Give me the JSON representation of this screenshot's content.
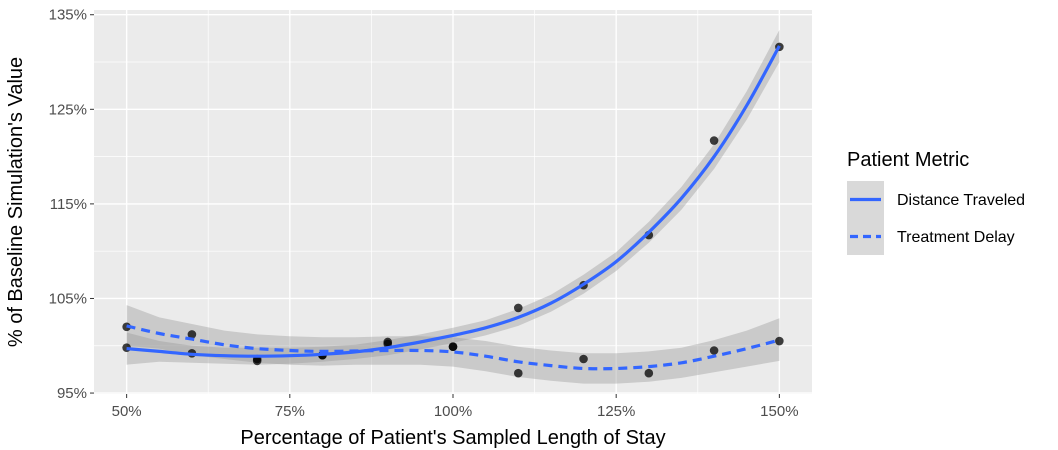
{
  "chart_data": {
    "type": "scatter",
    "title": "",
    "xlabel": "Percentage of Patient's Sampled Length of Stay",
    "ylabel": "% of Baseline Simulation's Value",
    "xlim": [
      45,
      155
    ],
    "ylim": [
      94.9,
      135.5
    ],
    "x_ticks": [
      50,
      75,
      100,
      125,
      150
    ],
    "x_tick_labels": [
      "50%",
      "75%",
      "100%",
      "125%",
      "150%"
    ],
    "y_ticks": [
      95,
      105,
      115,
      125,
      135
    ],
    "y_tick_labels": [
      "95%",
      "105%",
      "115%",
      "125%",
      "135%"
    ],
    "grid": true,
    "legend": {
      "title": "Patient Metric",
      "position": "right"
    },
    "series": [
      {
        "name": "Distance Traveled",
        "line_style": "solid",
        "color": "#3366ff",
        "points": [
          {
            "x": 50,
            "y": 99.8
          },
          {
            "x": 60,
            "y": 99.2
          },
          {
            "x": 70,
            "y": 98.6
          },
          {
            "x": 80,
            "y": 99.0
          },
          {
            "x": 90,
            "y": 100.2
          },
          {
            "x": 100,
            "y": 99.9
          },
          {
            "x": 110,
            "y": 104.0
          },
          {
            "x": 120,
            "y": 106.4
          },
          {
            "x": 130,
            "y": 111.7
          },
          {
            "x": 140,
            "y": 121.7
          },
          {
            "x": 150,
            "y": 131.6
          }
        ],
        "smooth": [
          {
            "x": 50,
            "y": 99.7
          },
          {
            "x": 55,
            "y": 99.4
          },
          {
            "x": 60,
            "y": 99.1
          },
          {
            "x": 65,
            "y": 98.95
          },
          {
            "x": 70,
            "y": 98.9
          },
          {
            "x": 75,
            "y": 98.95
          },
          {
            "x": 80,
            "y": 99.1
          },
          {
            "x": 85,
            "y": 99.35
          },
          {
            "x": 90,
            "y": 99.8
          },
          {
            "x": 95,
            "y": 100.4
          },
          {
            "x": 100,
            "y": 101.1
          },
          {
            "x": 105,
            "y": 101.9
          },
          {
            "x": 110,
            "y": 103.0
          },
          {
            "x": 115,
            "y": 104.5
          },
          {
            "x": 120,
            "y": 106.5
          },
          {
            "x": 125,
            "y": 108.9
          },
          {
            "x": 130,
            "y": 112.0
          },
          {
            "x": 135,
            "y": 115.6
          },
          {
            "x": 140,
            "y": 120.0
          },
          {
            "x": 145,
            "y": 125.4
          },
          {
            "x": 150,
            "y": 131.7
          }
        ],
        "band": [
          {
            "x": 50,
            "lo": 98.0,
            "hi": 101.4
          },
          {
            "x": 55,
            "lo": 98.3,
            "hi": 100.5
          },
          {
            "x": 60,
            "lo": 98.2,
            "hi": 100.0
          },
          {
            "x": 65,
            "lo": 98.1,
            "hi": 99.8
          },
          {
            "x": 70,
            "lo": 98.0,
            "hi": 99.8
          },
          {
            "x": 75,
            "lo": 98.1,
            "hi": 99.8
          },
          {
            "x": 80,
            "lo": 98.3,
            "hi": 99.9
          },
          {
            "x": 85,
            "lo": 98.6,
            "hi": 100.1
          },
          {
            "x": 90,
            "lo": 99.0,
            "hi": 100.6
          },
          {
            "x": 95,
            "lo": 99.6,
            "hi": 101.2
          },
          {
            "x": 100,
            "lo": 100.3,
            "hi": 101.9
          },
          {
            "x": 105,
            "lo": 101.1,
            "hi": 102.7
          },
          {
            "x": 110,
            "lo": 102.1,
            "hi": 103.9
          },
          {
            "x": 115,
            "lo": 103.6,
            "hi": 105.4
          },
          {
            "x": 120,
            "lo": 105.5,
            "hi": 107.5
          },
          {
            "x": 125,
            "lo": 107.9,
            "hi": 109.9
          },
          {
            "x": 130,
            "lo": 110.9,
            "hi": 113.1
          },
          {
            "x": 135,
            "lo": 114.4,
            "hi": 116.8
          },
          {
            "x": 140,
            "lo": 118.7,
            "hi": 121.3
          },
          {
            "x": 145,
            "lo": 123.9,
            "hi": 126.9
          },
          {
            "x": 150,
            "lo": 130.0,
            "hi": 133.4
          }
        ]
      },
      {
        "name": "Treatment Delay",
        "line_style": "dashed",
        "color": "#3366ff",
        "points": [
          {
            "x": 50,
            "y": 102.0
          },
          {
            "x": 60,
            "y": 101.2
          },
          {
            "x": 70,
            "y": 98.4
          },
          {
            "x": 80,
            "y": 99.0
          },
          {
            "x": 90,
            "y": 100.4
          },
          {
            "x": 100,
            "y": 99.9
          },
          {
            "x": 110,
            "y": 97.1
          },
          {
            "x": 120,
            "y": 98.6
          },
          {
            "x": 130,
            "y": 97.1
          },
          {
            "x": 140,
            "y": 99.5
          },
          {
            "x": 150,
            "y": 100.5
          }
        ],
        "smooth": [
          {
            "x": 50,
            "y": 102.1
          },
          {
            "x": 55,
            "y": 101.3
          },
          {
            "x": 60,
            "y": 100.7
          },
          {
            "x": 65,
            "y": 100.1
          },
          {
            "x": 70,
            "y": 99.7
          },
          {
            "x": 75,
            "y": 99.5
          },
          {
            "x": 80,
            "y": 99.4
          },
          {
            "x": 85,
            "y": 99.45
          },
          {
            "x": 90,
            "y": 99.5
          },
          {
            "x": 95,
            "y": 99.5
          },
          {
            "x": 100,
            "y": 99.35
          },
          {
            "x": 105,
            "y": 98.9
          },
          {
            "x": 110,
            "y": 98.3
          },
          {
            "x": 115,
            "y": 97.9
          },
          {
            "x": 120,
            "y": 97.6
          },
          {
            "x": 125,
            "y": 97.6
          },
          {
            "x": 130,
            "y": 97.8
          },
          {
            "x": 135,
            "y": 98.2
          },
          {
            "x": 140,
            "y": 98.9
          },
          {
            "x": 145,
            "y": 99.7
          },
          {
            "x": 150,
            "y": 100.6
          }
        ],
        "band": [
          {
            "x": 50,
            "lo": 100.0,
            "hi": 104.3
          },
          {
            "x": 55,
            "lo": 99.7,
            "hi": 103.0
          },
          {
            "x": 60,
            "lo": 99.0,
            "hi": 102.3
          },
          {
            "x": 65,
            "lo": 98.6,
            "hi": 101.6
          },
          {
            "x": 70,
            "lo": 98.2,
            "hi": 101.2
          },
          {
            "x": 75,
            "lo": 98.0,
            "hi": 101.0
          },
          {
            "x": 80,
            "lo": 97.9,
            "hi": 100.9
          },
          {
            "x": 85,
            "lo": 98.0,
            "hi": 100.9
          },
          {
            "x": 90,
            "lo": 98.0,
            "hi": 101.0
          },
          {
            "x": 95,
            "lo": 98.0,
            "hi": 101.0
          },
          {
            "x": 100,
            "lo": 97.8,
            "hi": 100.9
          },
          {
            "x": 105,
            "lo": 97.3,
            "hi": 100.5
          },
          {
            "x": 110,
            "lo": 96.7,
            "hi": 99.9
          },
          {
            "x": 115,
            "lo": 96.3,
            "hi": 99.5
          },
          {
            "x": 120,
            "lo": 96.0,
            "hi": 99.2
          },
          {
            "x": 125,
            "lo": 96.0,
            "hi": 99.2
          },
          {
            "x": 130,
            "lo": 96.2,
            "hi": 99.4
          },
          {
            "x": 135,
            "lo": 96.6,
            "hi": 99.8
          },
          {
            "x": 140,
            "lo": 97.2,
            "hi": 100.6
          },
          {
            "x": 145,
            "lo": 97.8,
            "hi": 101.6
          },
          {
            "x": 150,
            "lo": 98.4,
            "hi": 102.9
          }
        ]
      }
    ],
    "colors": {
      "panel_background": "#ebebeb",
      "band_fill": "#999999",
      "point_color": "#000000",
      "grid_color": "#ffffff",
      "legend_key_background": "#d9d9d9"
    }
  }
}
